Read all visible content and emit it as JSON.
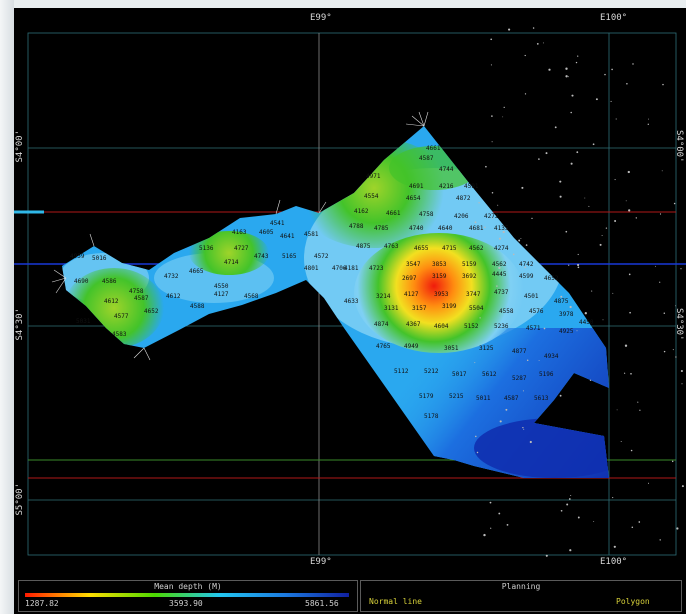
{
  "map": {
    "lon_labels": [
      "E99°",
      "E100°"
    ],
    "lat_labels": [
      "S4°00'",
      "S4°30'",
      "S5°00'"
    ],
    "colors": {
      "deep": "#1030b0",
      "mid_deep": "#1c6fe0",
      "mid": "#2aa8ef",
      "light": "#7fd0f4",
      "green": "#43c32a",
      "yellow_green": "#9fd42a",
      "yellow": "#f2e020",
      "orange": "#ff8c10",
      "red": "#f01b0c",
      "grid": "#2f6f77"
    },
    "depth_numbers": [
      "4661",
      "4587",
      "4744",
      "4971",
      "4691",
      "4216",
      "4591",
      "4554",
      "4654",
      "4872",
      "4541",
      "4162",
      "4661",
      "4758",
      "4206",
      "4272",
      "4163",
      "4605",
      "4641",
      "4581",
      "4788",
      "4785",
      "4740",
      "4640",
      "4681",
      "4135",
      "4727",
      "5136",
      "4714",
      "4743",
      "5165",
      "4572",
      "4875",
      "4763",
      "4655",
      "4715",
      "4562",
      "4274",
      "4959",
      "5016",
      "3547",
      "3853",
      "5159",
      "4562",
      "4742",
      "4801",
      "4706",
      "4723",
      "4732",
      "4690",
      "4586",
      "4758",
      "4665",
      "4550",
      "4181",
      "2697",
      "3159",
      "3692",
      "4445",
      "4599",
      "4652",
      "4612",
      "4587",
      "4612",
      "4588",
      "4127",
      "4568",
      "3214",
      "4127",
      "3953",
      "3747",
      "4737",
      "4501",
      "4875",
      "4577",
      "4652",
      "5031",
      "3131",
      "3157",
      "3199",
      "5504",
      "4558",
      "4576",
      "3978",
      "4450",
      "4583",
      "4633",
      "4874",
      "4367",
      "4604",
      "5152",
      "5236",
      "4571",
      "4925",
      "4765",
      "4949",
      "3051",
      "3125",
      "4877",
      "4934",
      "5112",
      "5212",
      "5017",
      "5612",
      "5287",
      "5196",
      "5179",
      "5215",
      "5011",
      "4587",
      "5613",
      "5178"
    ]
  },
  "legend": {
    "depth_title": "Mean depth (M)",
    "depth_min": "1287.82",
    "depth_mid": "3593.90",
    "depth_max": "5861.56",
    "planning_title": "Planning",
    "planning_normal": "Normal line",
    "planning_other": "",
    "planning_polygon": "Polygon"
  }
}
